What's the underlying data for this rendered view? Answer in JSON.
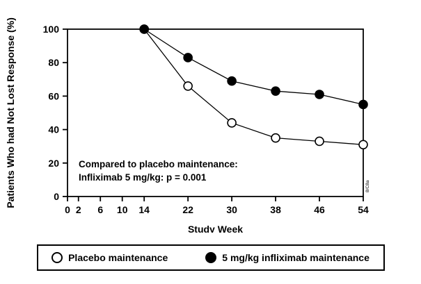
{
  "figure": {
    "watermark": "8/C8a"
  },
  "chart_data": {
    "type": "line",
    "title": "",
    "xlabel": "Study Week",
    "ylabel": "Patients Who had Not Lost Response (%)",
    "x_ticks": [
      0,
      2,
      6,
      10,
      14,
      22,
      30,
      38,
      46,
      54
    ],
    "y_ticks": [
      0,
      20,
      40,
      60,
      80,
      100
    ],
    "xlim": [
      0,
      54
    ],
    "ylim": [
      0,
      100
    ],
    "grid": false,
    "legend_position": "bottom",
    "annotation": [
      "Compared to placebo maintenance:",
      "Infliximab 5 mg/kg:  p = 0.001"
    ],
    "line_color": "#000000",
    "series": [
      {
        "name": "Placebo maintenance",
        "marker": "open",
        "x": [
          14,
          22,
          30,
          38,
          46,
          54
        ],
        "y": [
          100,
          66,
          44,
          35,
          33,
          31
        ]
      },
      {
        "name": "5 mg/kg infliximab maintenance",
        "marker": "filled",
        "x": [
          14,
          22,
          30,
          38,
          46,
          54
        ],
        "y": [
          100,
          83,
          69,
          63,
          61,
          55
        ]
      }
    ]
  }
}
